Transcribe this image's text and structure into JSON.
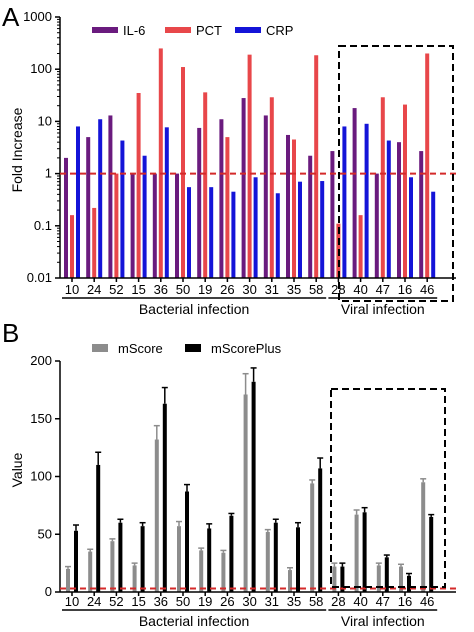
{
  "chart_data": [
    {
      "panel_label": "A",
      "type": "bar",
      "yscale": "log",
      "ylabel": "Fold Increase",
      "ylim": [
        0.01,
        1000
      ],
      "yticks": [
        "0.01",
        "0.1",
        "1",
        "10",
        "100",
        "1000"
      ],
      "categories": [
        "10",
        "24",
        "52",
        "15",
        "36",
        "50",
        "19",
        "26",
        "30",
        "31",
        "35",
        "58",
        "28",
        "40",
        "47",
        "16",
        "46"
      ],
      "groups": [
        {
          "label": "Bacterial infection",
          "from": 0,
          "to": 11
        },
        {
          "label": "Viral infection",
          "from": 12,
          "to": 16
        }
      ],
      "reference_line": 1,
      "series": [
        {
          "name": "IL-6",
          "color": "#6a1b7e",
          "values": [
            2.0,
            5.0,
            13,
            1.0,
            1.0,
            1.0,
            7.5,
            11,
            28,
            13,
            5.5,
            2.2,
            2.7,
            18,
            1.0,
            4.0,
            2.7
          ]
        },
        {
          "name": "PCT",
          "color": "#e8474a",
          "values": [
            0.16,
            0.22,
            1.0,
            35,
            250,
            110,
            36,
            5.0,
            190,
            29,
            4.5,
            185,
            0.11,
            0.16,
            29,
            21,
            200
          ]
        },
        {
          "name": "CRP",
          "color": "#1414d8",
          "values": [
            8.0,
            11,
            4.3,
            2.2,
            7.7,
            0.55,
            0.55,
            0.45,
            0.85,
            0.42,
            0.7,
            0.72,
            8.0,
            9.0,
            4.3,
            0.85,
            0.45
          ]
        }
      ]
    },
    {
      "panel_label": "B",
      "type": "bar",
      "yscale": "linear",
      "ylabel": "Value",
      "ylim": [
        0,
        200
      ],
      "yticks": [
        "0",
        "50",
        "100",
        "150",
        "200"
      ],
      "categories": [
        "10",
        "24",
        "52",
        "15",
        "36",
        "50",
        "19",
        "26",
        "30",
        "31",
        "35",
        "58",
        "28",
        "40",
        "47",
        "16",
        "46"
      ],
      "groups": [
        {
          "label": "Bacterial infection",
          "from": 0,
          "to": 11
        },
        {
          "label": "Viral infection",
          "from": 12,
          "to": 16
        }
      ],
      "reference_line": 3,
      "series": [
        {
          "name": "mScore",
          "color": "#8c8c8c",
          "values": [
            20,
            35,
            44,
            23,
            132,
            57,
            36,
            34,
            171,
            52,
            19,
            94,
            22,
            67,
            23,
            22,
            95
          ],
          "errors": [
            2,
            2,
            2,
            2,
            12,
            4,
            2,
            2,
            18,
            2,
            2,
            3,
            3,
            4,
            2,
            2,
            3
          ]
        },
        {
          "name": "mScorePlus",
          "color": "#000000",
          "values": [
            53,
            110,
            60,
            57,
            163,
            87,
            55,
            66,
            182,
            60,
            56,
            107,
            22,
            69,
            30,
            14,
            65
          ],
          "errors": [
            5,
            11,
            3,
            3,
            14,
            6,
            4,
            2,
            12,
            3,
            4,
            9,
            3,
            4,
            2,
            2,
            2
          ]
        }
      ]
    }
  ]
}
